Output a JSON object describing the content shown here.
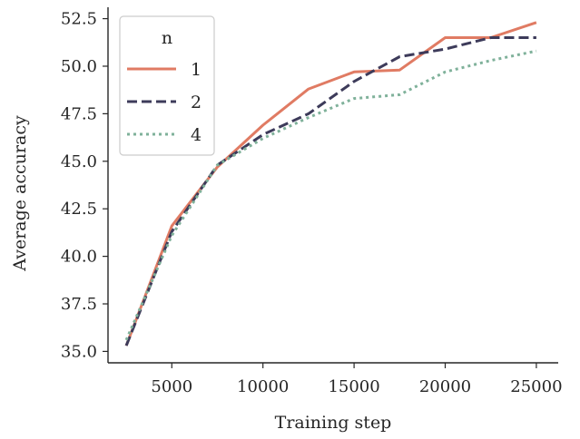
{
  "chart_data": {
    "type": "line",
    "xlabel": "Training step",
    "ylabel": "Average accuracy",
    "xlim": [
      1500,
      26200
    ],
    "ylim": [
      34.4,
      53.1
    ],
    "x_ticks": [
      5000,
      10000,
      15000,
      20000,
      25000
    ],
    "x_tick_labels": [
      "5000",
      "10000",
      "15000",
      "20000",
      "25000"
    ],
    "y_ticks": [
      35.0,
      37.5,
      40.0,
      42.5,
      45.0,
      47.5,
      50.0,
      52.5
    ],
    "y_tick_labels": [
      "35.0",
      "37.5",
      "40.0",
      "42.5",
      "45.0",
      "47.5",
      "50.0",
      "52.5"
    ],
    "grid": false,
    "legend": {
      "title": "n",
      "position": "top-left"
    },
    "series": [
      {
        "name": "1",
        "color": "#e07b63",
        "style": "solid",
        "x": [
          2500,
          5000,
          7500,
          10000,
          12500,
          15000,
          17500,
          20000,
          22500,
          25000
        ],
        "y": [
          35.3,
          41.6,
          44.7,
          46.9,
          48.8,
          49.7,
          49.8,
          51.5,
          51.5,
          52.3
        ]
      },
      {
        "name": "2",
        "color": "#3d3b5a",
        "style": "dashed",
        "x": [
          2500,
          5000,
          7500,
          10000,
          12500,
          15000,
          17500,
          20000,
          22500,
          25000
        ],
        "y": [
          35.3,
          41.3,
          44.8,
          46.4,
          47.5,
          49.2,
          50.5,
          50.9,
          51.5,
          51.5
        ]
      },
      {
        "name": "4",
        "color": "#7fb19a",
        "style": "dotted",
        "x": [
          2500,
          5000,
          7500,
          10000,
          12500,
          15000,
          17500,
          20000,
          22500,
          25000
        ],
        "y": [
          35.6,
          41.1,
          44.8,
          46.2,
          47.3,
          48.3,
          48.5,
          49.7,
          50.3,
          50.8
        ]
      }
    ]
  }
}
